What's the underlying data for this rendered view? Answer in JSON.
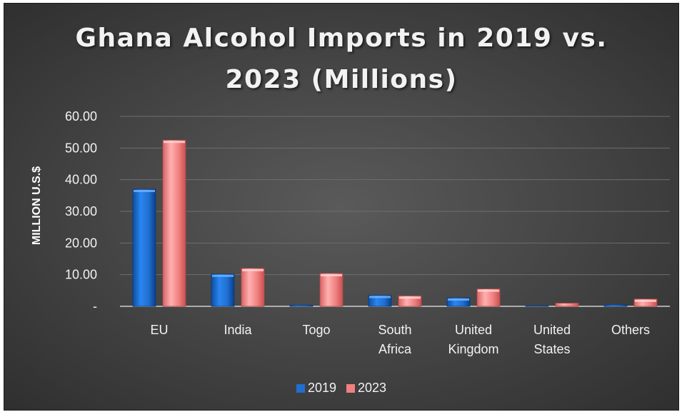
{
  "chart_data": {
    "type": "bar",
    "title_lines": [
      "Ghana Alcohol Imports in 2019 vs.",
      "2023 (Millions)"
    ],
    "xlabel": "",
    "ylabel": "MILLION U.S.$",
    "categories": [
      [
        "EU"
      ],
      [
        "India"
      ],
      [
        "Togo"
      ],
      [
        "South",
        "Africa"
      ],
      [
        "United",
        "Kingdom"
      ],
      [
        "United",
        "States"
      ],
      [
        "Others"
      ]
    ],
    "series": [
      {
        "name": "2019",
        "color": "#1f6fd1",
        "values": [
          37.0,
          10.2,
          0.4,
          3.5,
          2.7,
          0.2,
          0.5
        ]
      },
      {
        "name": "2023",
        "color": "#f08080",
        "values": [
          52.5,
          12.0,
          10.4,
          3.3,
          5.5,
          1.0,
          2.3
        ]
      }
    ],
    "ylim": [
      0,
      60
    ],
    "yticks": [
      0,
      10,
      20,
      30,
      40,
      50,
      60
    ],
    "ytick_labels": [
      "-",
      "10.00",
      "20.00",
      "30.00",
      "40.00",
      "50.00",
      "60.00"
    ],
    "grid": true,
    "legend_position": "bottom"
  }
}
